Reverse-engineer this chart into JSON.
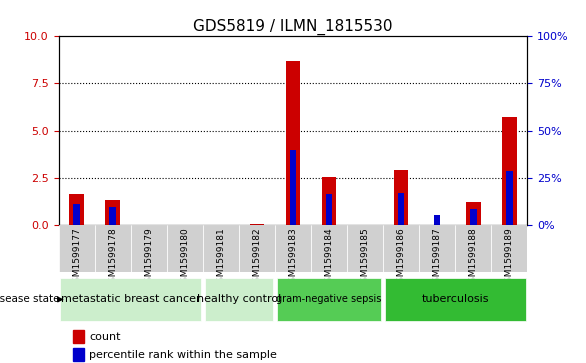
{
  "title": "GDS5819 / ILMN_1815530",
  "samples": [
    "GSM1599177",
    "GSM1599178",
    "GSM1599179",
    "GSM1599180",
    "GSM1599181",
    "GSM1599182",
    "GSM1599183",
    "GSM1599184",
    "GSM1599185",
    "GSM1599186",
    "GSM1599187",
    "GSM1599188",
    "GSM1599189"
  ],
  "count_values": [
    1.65,
    1.35,
    0.0,
    0.0,
    0.0,
    0.05,
    8.7,
    2.55,
    0.0,
    2.9,
    0.0,
    1.2,
    5.7
  ],
  "percentile_values": [
    1.1,
    0.95,
    0.0,
    0.0,
    0.0,
    0.0,
    4.0,
    1.65,
    0.0,
    1.7,
    0.55,
    0.85,
    2.85
  ],
  "group_info": [
    {
      "label": "metastatic breast cancer",
      "start": 0,
      "end": 3,
      "color": "#cceecc"
    },
    {
      "label": "healthy control",
      "start": 4,
      "end": 5,
      "color": "#cceecc"
    },
    {
      "label": "gram-negative sepsis",
      "start": 6,
      "end": 8,
      "color": "#55cc55"
    },
    {
      "label": "tuberculosis",
      "start": 9,
      "end": 12,
      "color": "#33bb33"
    }
  ],
  "ylim_left": [
    0,
    10
  ],
  "ylim_right": [
    0,
    100
  ],
  "yticks_left": [
    0,
    2.5,
    5,
    7.5,
    10
  ],
  "yticks_right": [
    0,
    25,
    50,
    75,
    100
  ],
  "bar_color_red": "#cc0000",
  "bar_color_blue": "#0000cc",
  "left_tick_color": "#cc0000",
  "right_tick_color": "#0000cc"
}
